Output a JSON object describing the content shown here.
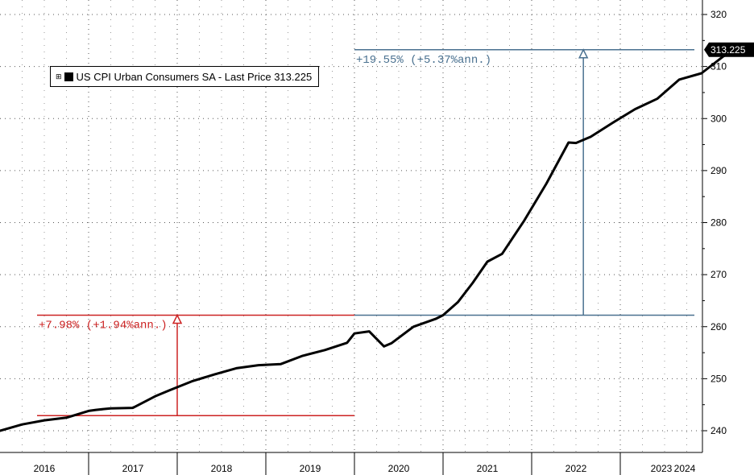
{
  "chart_data": {
    "type": "line",
    "legend": {
      "text": "US CPI Urban Consumers SA - Last Price 313.225",
      "toggle_glyph": "⊞",
      "placement": "top-left"
    },
    "last_value_label": "313.225",
    "years": [
      "2016",
      "2017",
      "2018",
      "2019",
      "2020",
      "2021",
      "2022",
      "2023",
      "2024"
    ],
    "yaxis": {
      "ticks": [
        240,
        250,
        260,
        270,
        280,
        290,
        300,
        310,
        320
      ],
      "ylim": [
        239,
        321.5
      ],
      "position": "right"
    },
    "xlim": [
      "2016-01",
      "2024-07"
    ],
    "grid": true,
    "series": [
      {
        "name": "US CPI Urban Consumers SA",
        "color": "#000000",
        "x": [
          "2016-01",
          "2016-04",
          "2016-07",
          "2016-10",
          "2017-01",
          "2017-02",
          "2017-04",
          "2017-07",
          "2017-10",
          "2017-12",
          "2018-03",
          "2018-06",
          "2018-09",
          "2018-12",
          "2019-03",
          "2019-06",
          "2019-09",
          "2019-12",
          "2020-01",
          "2020-03",
          "2020-05",
          "2020-06",
          "2020-09",
          "2020-12",
          "2021-01",
          "2021-03",
          "2021-05",
          "2021-07",
          "2021-09",
          "2021-12",
          "2022-03",
          "2022-06",
          "2022-07",
          "2022-09",
          "2022-12",
          "2023-03",
          "2023-06",
          "2023-09",
          "2023-12",
          "2024-03",
          "2024-05",
          "2024-06"
        ],
        "y": [
          240.0,
          241.2,
          242.0,
          242.5,
          243.8,
          244.0,
          244.3,
          244.4,
          246.6,
          247.8,
          249.5,
          250.8,
          252.0,
          252.6,
          252.8,
          254.4,
          255.5,
          256.9,
          258.7,
          259.1,
          256.2,
          256.8,
          260.0,
          261.5,
          262.2,
          264.7,
          268.4,
          272.5,
          274.0,
          280.4,
          287.5,
          295.4,
          295.3,
          296.5,
          299.2,
          301.8,
          303.8,
          307.5,
          308.7,
          312.0,
          313.2,
          313.225
        ]
      }
    ],
    "annotations": [
      {
        "text": "+7.98% (+1.94%ann.)",
        "color": "#cc2222",
        "from_value": 242.9,
        "to_value": 262.2,
        "span_from": "2016-01",
        "span_to": "2020-01",
        "marker_at": "2018-01"
      },
      {
        "text": "+19.55% (+5.37%ann.)",
        "color": "#4a7190",
        "from_value": 262.2,
        "to_value": 313.225,
        "span_from": "2020-01",
        "span_to": "2024-07",
        "marker_at": "2022-08"
      }
    ]
  }
}
